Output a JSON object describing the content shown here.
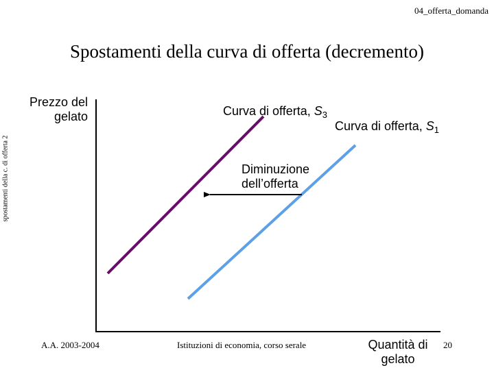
{
  "header": {
    "file_label": "04_offerta_domanda"
  },
  "title": "Spostamenti della curva di offerta (decremento)",
  "side_label": "spostamenti della c. di offerta 2",
  "axes": {
    "y_label": "Prezzo del gelato",
    "x_label": "Quantità di gelato"
  },
  "curves": {
    "s3": {
      "label": "Curva di offerta, ",
      "symbol": "S",
      "subscript": "3",
      "color": "#6a0d6a"
    },
    "s1": {
      "label": "Curva di offerta, ",
      "symbol": "S",
      "subscript": "1",
      "color": "#5da0e6"
    }
  },
  "annotation": {
    "label": "Diminuzione dell’offerta"
  },
  "footer": {
    "left": "A.A. 2003-2004",
    "center": "Istituzioni di economia, corso serale",
    "page": "20"
  }
}
